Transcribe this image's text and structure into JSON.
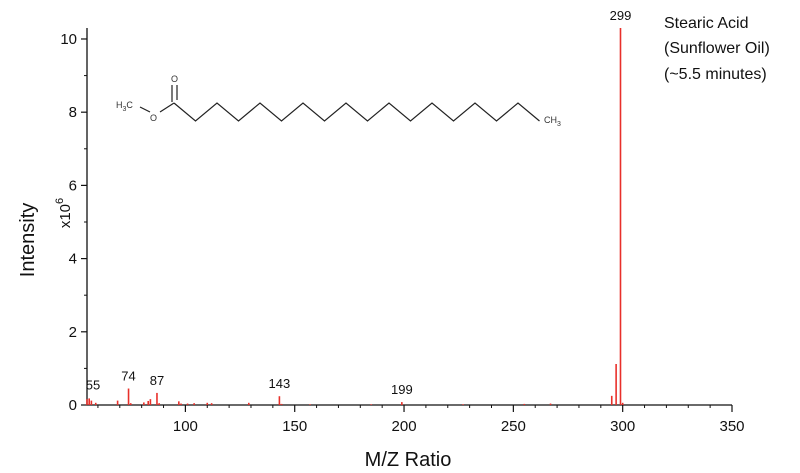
{
  "chart_data": {
    "type": "bar",
    "title": "",
    "xlabel": "M/Z Ratio",
    "ylabel": "Intensity",
    "yunit": "x10",
    "yunit_exp": "6",
    "xlim": [
      55,
      350
    ],
    "ylim": [
      0,
      10.3
    ],
    "xticks": [
      100,
      150,
      200,
      250,
      300,
      350
    ],
    "yticks": [
      0,
      2,
      4,
      6,
      8,
      10
    ],
    "grid": false,
    "color": "#e8302a",
    "peaks": [
      {
        "mz": 55,
        "intensity": 0.16
      },
      {
        "mz": 56,
        "intensity": 0.18
      },
      {
        "mz": 57,
        "intensity": 0.12
      },
      {
        "mz": 59,
        "intensity": 0.06
      },
      {
        "mz": 69,
        "intensity": 0.12
      },
      {
        "mz": 74,
        "intensity": 0.45
      },
      {
        "mz": 75,
        "intensity": 0.05
      },
      {
        "mz": 81,
        "intensity": 0.07
      },
      {
        "mz": 83,
        "intensity": 0.11
      },
      {
        "mz": 84,
        "intensity": 0.16
      },
      {
        "mz": 87,
        "intensity": 0.33
      },
      {
        "mz": 88,
        "intensity": 0.05
      },
      {
        "mz": 97,
        "intensity": 0.1
      },
      {
        "mz": 98,
        "intensity": 0.04
      },
      {
        "mz": 101,
        "intensity": 0.04
      },
      {
        "mz": 104,
        "intensity": 0.05
      },
      {
        "mz": 110,
        "intensity": 0.06
      },
      {
        "mz": 112,
        "intensity": 0.05
      },
      {
        "mz": 129,
        "intensity": 0.06
      },
      {
        "mz": 143,
        "intensity": 0.24
      },
      {
        "mz": 144,
        "intensity": 0.03
      },
      {
        "mz": 157,
        "intensity": 0.02
      },
      {
        "mz": 185,
        "intensity": 0.02
      },
      {
        "mz": 199,
        "intensity": 0.08
      },
      {
        "mz": 227,
        "intensity": 0.02
      },
      {
        "mz": 255,
        "intensity": 0.03
      },
      {
        "mz": 267,
        "intensity": 0.04
      },
      {
        "mz": 295,
        "intensity": 0.25
      },
      {
        "mz": 297,
        "intensity": 1.12
      },
      {
        "mz": 299,
        "intensity": 10.3
      },
      {
        "mz": 300,
        "intensity": 0.06
      }
    ],
    "peak_labels": [
      {
        "mz": 55,
        "text": "55",
        "intensity": 0.2
      },
      {
        "mz": 74,
        "text": "74",
        "intensity": 0.45
      },
      {
        "mz": 87,
        "text": "87",
        "intensity": 0.33
      },
      {
        "mz": 143,
        "text": "143",
        "intensity": 0.24
      },
      {
        "mz": 199,
        "text": "199",
        "intensity": 0.08
      },
      {
        "mz": 299,
        "text": "299",
        "intensity": 10.3
      }
    ],
    "annotation": [
      "Stearic Acid",
      "(Sunflower Oil)",
      "(~5.5 minutes)"
    ],
    "molecule": {
      "left_group_main": "H",
      "left_group_sub": "3",
      "left_group_tail": "C",
      "ether_oxygen": "O",
      "carbonyl_oxygen": "O",
      "right_group_main": "CH",
      "right_group_sub": "3"
    }
  }
}
